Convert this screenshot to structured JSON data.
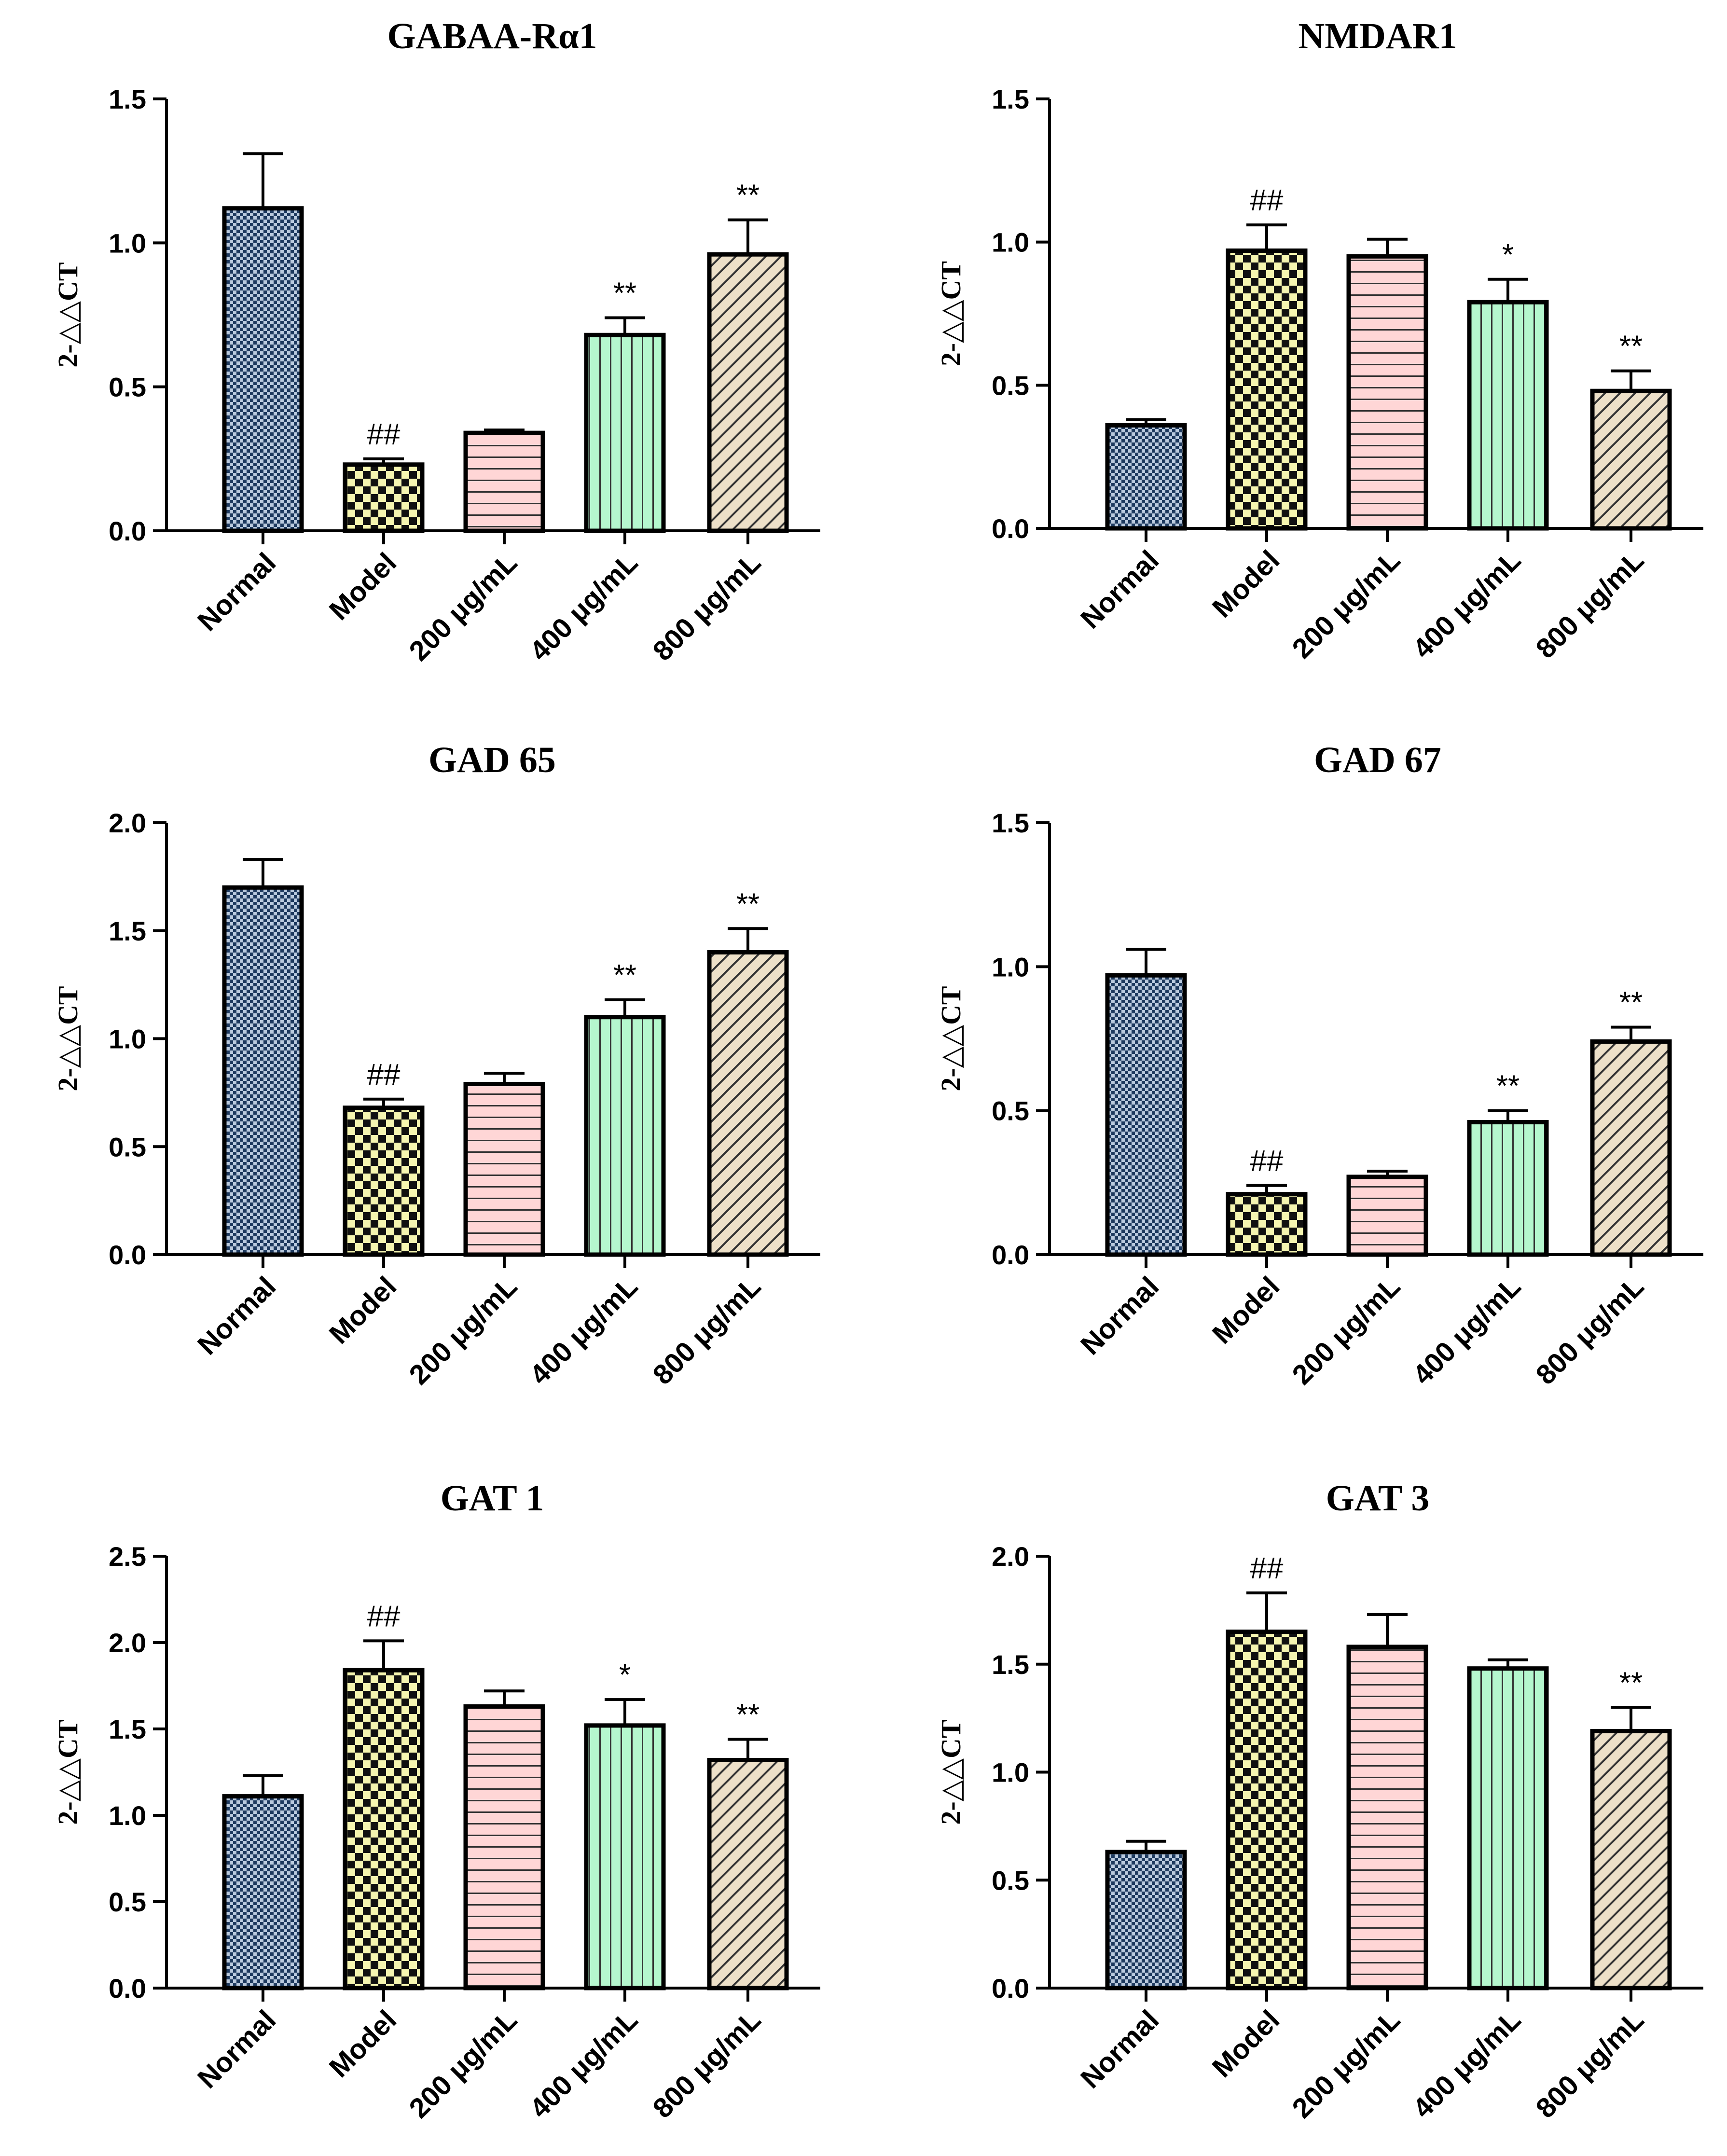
{
  "figure": {
    "pattern_colors": [
      "#b9c9dd",
      "#f5f5b0",
      "#ffd6d6",
      "#b5f7ce",
      "#ede0c8"
    ]
  },
  "chart_data": [
    {
      "type": "bar",
      "title": "GABAA-Rα1",
      "ylabel": "2-△△CT",
      "ylim": [
        0,
        1.5
      ],
      "yticks": [
        "0.0",
        "0.5",
        "1.0",
        "1.5"
      ],
      "categories": [
        "Normal",
        "Model",
        "200 μg/mL",
        "400 μg/mL",
        "800 μg/mL"
      ],
      "values": [
        1.12,
        0.23,
        0.34,
        0.68,
        0.96
      ],
      "errors": [
        0.19,
        0.02,
        0.01,
        0.06,
        0.12
      ],
      "annotations": [
        "",
        "##",
        "",
        "**",
        "**"
      ]
    },
    {
      "type": "bar",
      "title": "NMDAR1",
      "ylabel": "2-△△CT",
      "ylim": [
        0,
        1.5
      ],
      "yticks": [
        "0.0",
        "0.5",
        "1.0",
        "1.5"
      ],
      "categories": [
        "Normal",
        "Model",
        "200 μg/mL",
        "400 μg/mL",
        "800 μg/mL"
      ],
      "values": [
        0.36,
        0.97,
        0.95,
        0.79,
        0.48
      ],
      "errors": [
        0.02,
        0.09,
        0.06,
        0.08,
        0.07
      ],
      "annotations": [
        "",
        "##",
        "",
        "*",
        "**"
      ]
    },
    {
      "type": "bar",
      "title": "GAD 65",
      "ylabel": "2-△△CT",
      "ylim": [
        0,
        2.0
      ],
      "yticks": [
        "0.0",
        "0.5",
        "1.0",
        "1.5",
        "2.0"
      ],
      "categories": [
        "Normal",
        "Model",
        "200 μg/mL",
        "400 μg/mL",
        "800 μg/mL"
      ],
      "values": [
        1.7,
        0.68,
        0.79,
        1.1,
        1.4
      ],
      "errors": [
        0.13,
        0.04,
        0.05,
        0.08,
        0.11
      ],
      "annotations": [
        "",
        "##",
        "",
        "**",
        "**"
      ]
    },
    {
      "type": "bar",
      "title": "GAD 67",
      "ylabel": "2-△△CT",
      "ylim": [
        0,
        1.5
      ],
      "yticks": [
        "0.0",
        "0.5",
        "1.0",
        "1.5"
      ],
      "categories": [
        "Normal",
        "Model",
        "200 μg/mL",
        "400 μg/mL",
        "800 μg/mL"
      ],
      "values": [
        0.97,
        0.21,
        0.27,
        0.46,
        0.74
      ],
      "errors": [
        0.09,
        0.03,
        0.02,
        0.04,
        0.05
      ],
      "annotations": [
        "",
        "##",
        "",
        "**",
        "**"
      ]
    },
    {
      "type": "bar",
      "title": "GAT 1",
      "ylabel": "2-△△CT",
      "ylim": [
        0,
        2.5
      ],
      "yticks": [
        "0.0",
        "0.5",
        "1.0",
        "1.5",
        "2.0",
        "2.5"
      ],
      "categories": [
        "Normal",
        "Model",
        "200 μg/mL",
        "400 μg/mL",
        "800 μg/mL"
      ],
      "values": [
        1.11,
        1.84,
        1.63,
        1.52,
        1.32
      ],
      "errors": [
        0.12,
        0.17,
        0.09,
        0.15,
        0.12
      ],
      "annotations": [
        "",
        "##",
        "",
        "*",
        "**"
      ]
    },
    {
      "type": "bar",
      "title": "GAT 3",
      "ylabel": "2-△△CT",
      "ylim": [
        0,
        2.0
      ],
      "yticks": [
        "0.0",
        "0.5",
        "1.0",
        "1.5",
        "2.0"
      ],
      "categories": [
        "Normal",
        "Model",
        "200 μg/mL",
        "400 μg/mL",
        "800 μg/mL"
      ],
      "values": [
        0.63,
        1.65,
        1.58,
        1.48,
        1.19
      ],
      "errors": [
        0.05,
        0.18,
        0.15,
        0.04,
        0.11
      ],
      "annotations": [
        "",
        "##",
        "",
        "",
        "**"
      ]
    }
  ]
}
